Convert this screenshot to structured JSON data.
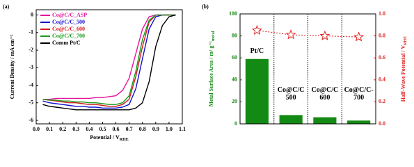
{
  "chart_data": [
    {
      "type": "line",
      "panel": "(a)",
      "x_label": "Potential / V",
      "x_label_sub": "RHE",
      "y_label": "Current Density / mA cm⁻²",
      "x": [
        0.05,
        0.1,
        0.15,
        0.2,
        0.25,
        0.3,
        0.35,
        0.4,
        0.45,
        0.5,
        0.55,
        0.6,
        0.65,
        0.7,
        0.75,
        0.8,
        0.85,
        0.9,
        0.95,
        1.0,
        1.05
      ],
      "series": [
        {
          "name": "Co@C/C_ASP",
          "color": "#e6139c",
          "values": [
            -4.8,
            -4.8,
            -4.75,
            -4.75,
            -4.75,
            -4.75,
            -4.75,
            -4.75,
            -4.7,
            -4.7,
            -4.65,
            -4.6,
            -4.3,
            -3.6,
            -2.2,
            -0.8,
            -0.1,
            0,
            0,
            0,
            0
          ]
        },
        {
          "name": "Co@C/C_500",
          "color": "#1010d0",
          "values": [
            -4.9,
            -5.0,
            -5.05,
            -5.1,
            -5.15,
            -5.2,
            -5.2,
            -5.25,
            -5.25,
            -5.3,
            -5.3,
            -5.3,
            -5.25,
            -5.1,
            -4.2,
            -2.5,
            -0.8,
            -0.1,
            0,
            0,
            0
          ]
        },
        {
          "name": "Co@C/C_600",
          "color": "#d41a1a",
          "values": [
            -4.8,
            -4.85,
            -4.9,
            -4.95,
            -5.0,
            -5.0,
            -5.05,
            -5.1,
            -5.1,
            -5.15,
            -5.2,
            -5.2,
            -5.1,
            -4.8,
            -3.5,
            -1.8,
            -0.4,
            0,
            0,
            0,
            0
          ]
        },
        {
          "name": "Co@C/C_700",
          "color": "#1a9a1a",
          "values": [
            -4.8,
            -4.85,
            -4.85,
            -4.9,
            -4.9,
            -4.95,
            -4.95,
            -5.0,
            -5.0,
            -5.05,
            -5.1,
            -5.1,
            -5.0,
            -4.6,
            -3.2,
            -1.4,
            -0.3,
            0,
            0,
            0,
            0
          ]
        },
        {
          "name": "Comm Pt/C",
          "color": "#000000",
          "values": [
            -5.1,
            -5.2,
            -5.25,
            -5.3,
            -5.35,
            -5.4,
            -5.4,
            -5.4,
            -5.4,
            -5.4,
            -5.4,
            -5.4,
            -5.4,
            -5.4,
            -5.3,
            -5.0,
            -3.8,
            -1.8,
            -0.6,
            -0.1,
            0
          ]
        }
      ],
      "xlim": [
        0.0,
        1.1
      ],
      "xticks": [
        {
          "value": 0,
          "label": "0.0"
        },
        0.1,
        0.2,
        0.3,
        0.4,
        0.5,
        0.6,
        0.7,
        0.8,
        0.9,
        {
          "value": 1,
          "label": "1.0"
        },
        1.1
      ],
      "ylim": [
        -6.2,
        0.3
      ],
      "yticks": [
        0,
        -1,
        -2,
        -3,
        -4,
        -5,
        -6
      ],
      "legend": "upper left"
    },
    {
      "type": "bar",
      "panel": "(b)",
      "y_label": "Metal Surface Area / m² g⁻¹",
      "y_label_sub": "metal",
      "y2_label": "Half-Wave Potential / V",
      "y2_label_sub": "RHE",
      "categories": [
        "Pt/C",
        "Co@C/C\n500",
        "Co@C/C\n600",
        "Co@C/C-\n700"
      ],
      "series": [
        {
          "type": "bar",
          "color": "#138a13",
          "values": [
            59,
            8,
            6,
            3
          ]
        },
        {
          "type": "line",
          "axis": "y2",
          "color": "#e02020",
          "values": [
            0.85,
            0.81,
            0.8,
            0.79
          ]
        }
      ],
      "ylim": [
        0,
        100
      ],
      "yticks": [
        0,
        20,
        40,
        60,
        80,
        100
      ],
      "y2lim": [
        0,
        1
      ],
      "y2ticks": [
        {
          "value": 0,
          "label": "0.0"
        },
        0.2,
        0.4,
        0.6,
        0.8,
        {
          "value": 1,
          "label": "1.0"
        }
      ]
    }
  ]
}
